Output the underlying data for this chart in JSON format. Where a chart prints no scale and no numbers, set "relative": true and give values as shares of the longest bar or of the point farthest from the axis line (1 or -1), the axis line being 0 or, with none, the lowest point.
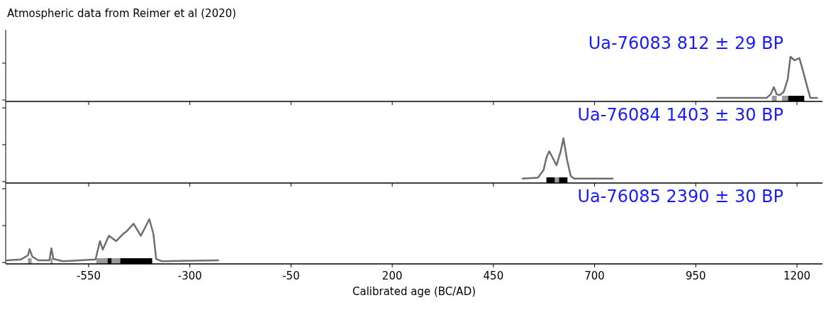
{
  "chart_data": [
    {
      "type": "line",
      "title": "Atmospheric data from Reimer et al (2020)",
      "annotations": [
        "Ua-76083 812 ± 29 BP"
      ],
      "relative": true,
      "color": "#6e6e6e",
      "xlim": [
        -755,
        1263
      ],
      "xticks": [
        -550,
        -300,
        -50,
        200,
        450,
        700,
        950,
        1200
      ],
      "tick_labels": false,
      "x": [
        1003,
        1125,
        1135,
        1143,
        1150,
        1157,
        1167,
        1177,
        1184,
        1194,
        1206,
        1215,
        1224,
        1233,
        1250
      ],
      "values": [
        0.08,
        0.08,
        0.16,
        0.32,
        0.16,
        0.14,
        0.21,
        0.49,
        1,
        0.92,
        0.97,
        0.68,
        0.37,
        0.08,
        0.08
      ],
      "bands": [
        {
          "axis": "x",
          "from": 1138,
          "to": 1150,
          "color": "#999999"
        },
        {
          "axis": "x",
          "from": 1163,
          "to": 1178,
          "color": "#999999"
        },
        {
          "axis": "x",
          "from": 1178,
          "to": 1218,
          "color": "#000000"
        }
      ]
    },
    {
      "type": "line",
      "annotations": [
        "Ua-76084 1403 ± 30 BP"
      ],
      "relative": true,
      "color": "#6e6e6e",
      "xlim": [
        -755,
        1263
      ],
      "xticks": [
        -550,
        -300,
        -50,
        200,
        450,
        700,
        950,
        1200
      ],
      "tick_labels": false,
      "x": [
        522,
        560,
        574,
        581,
        588,
        606,
        616,
        623,
        632,
        641,
        649,
        745
      ],
      "values": [
        0.1,
        0.12,
        0.29,
        0.57,
        0.71,
        0.4,
        0.7,
        1,
        0.52,
        0.16,
        0.1,
        0.1
      ],
      "bands": [
        {
          "axis": "x",
          "from": 581,
          "to": 602,
          "color": "#000000"
        },
        {
          "axis": "x",
          "from": 602,
          "to": 612,
          "color": "#999999"
        },
        {
          "axis": "x",
          "from": 612,
          "to": 633,
          "color": "#000000"
        }
      ]
    },
    {
      "type": "line",
      "annotations": [
        "Ua-76085 2390 ± 30 BP"
      ],
      "xlabel": "Calibrated age (BC/AD)",
      "relative": true,
      "color": "#6e6e6e",
      "xlim": [
        -755,
        1263
      ],
      "xticks": [
        -550,
        -300,
        -50,
        200,
        450,
        700,
        950,
        1200
      ],
      "tick_labels": "x",
      "x": [
        -752,
        -717,
        -700,
        -696,
        -689,
        -674,
        -647,
        -642,
        -637,
        -613,
        -533,
        -522,
        -515,
        -500,
        -482,
        -465,
        -456,
        -439,
        -421,
        -400,
        -390,
        -383,
        -369,
        -230
      ],
      "values": [
        0.08,
        0.1,
        0.19,
        0.33,
        0.16,
        0.08,
        0.08,
        0.35,
        0.11,
        0.06,
        0.1,
        0.51,
        0.32,
        0.63,
        0.51,
        0.67,
        0.73,
        0.9,
        0.63,
        1,
        0.67,
        0.11,
        0.06,
        0.08
      ],
      "bands": [
        {
          "axis": "x",
          "from": -700,
          "to": -691,
          "color": "#999999"
        },
        {
          "axis": "x",
          "from": -644,
          "to": -639,
          "color": "#999999"
        },
        {
          "axis": "x",
          "from": -531,
          "to": -503,
          "color": "#999999"
        },
        {
          "axis": "x",
          "from": -503,
          "to": -493,
          "color": "#000000"
        },
        {
          "axis": "x",
          "from": -493,
          "to": -472,
          "color": "#999999"
        },
        {
          "axis": "x",
          "from": -472,
          "to": -393,
          "color": "#000000"
        }
      ]
    }
  ]
}
